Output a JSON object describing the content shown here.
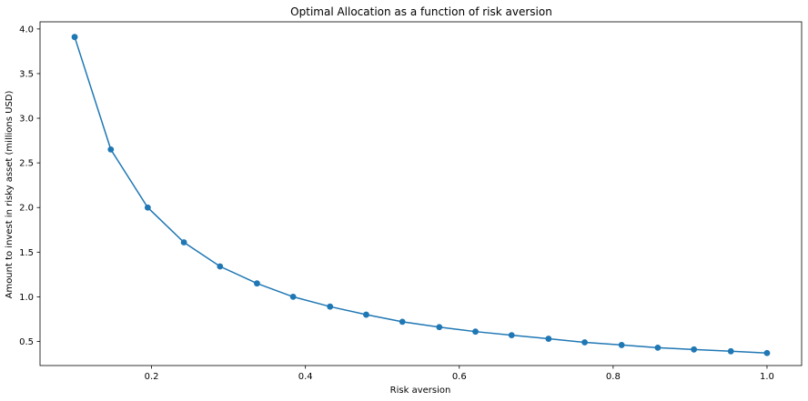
{
  "chart_data": {
    "type": "line",
    "title": "Optimal Allocation as a function of risk aversion",
    "xlabel": "Risk aversion",
    "ylabel": "Amount to invest in risky asset (millions USD)",
    "xlim": [
      0.055,
      1.045
    ],
    "ylim": [
      0.23,
      4.08
    ],
    "x_ticks": [
      "0.2",
      "0.4",
      "0.6",
      "0.8",
      "1.0"
    ],
    "y_ticks": [
      "0.5",
      "1.0",
      "1.5",
      "2.0",
      "2.5",
      "3.0",
      "3.5",
      "4.0"
    ],
    "grid": false,
    "line_color": "#1f77b4",
    "marker": "circle",
    "series": [
      {
        "x": [
          0.1,
          0.147,
          0.195,
          0.242,
          0.289,
          0.337,
          0.384,
          0.432,
          0.479,
          0.526,
          0.574,
          0.621,
          0.668,
          0.716,
          0.763,
          0.811,
          0.858,
          0.905,
          0.953,
          1.0
        ],
        "values": [
          3.91,
          2.65,
          2.0,
          1.61,
          1.34,
          1.15,
          1.0,
          0.89,
          0.8,
          0.72,
          0.66,
          0.61,
          0.57,
          0.53,
          0.49,
          0.46,
          0.43,
          0.41,
          0.39,
          0.37
        ]
      }
    ]
  }
}
